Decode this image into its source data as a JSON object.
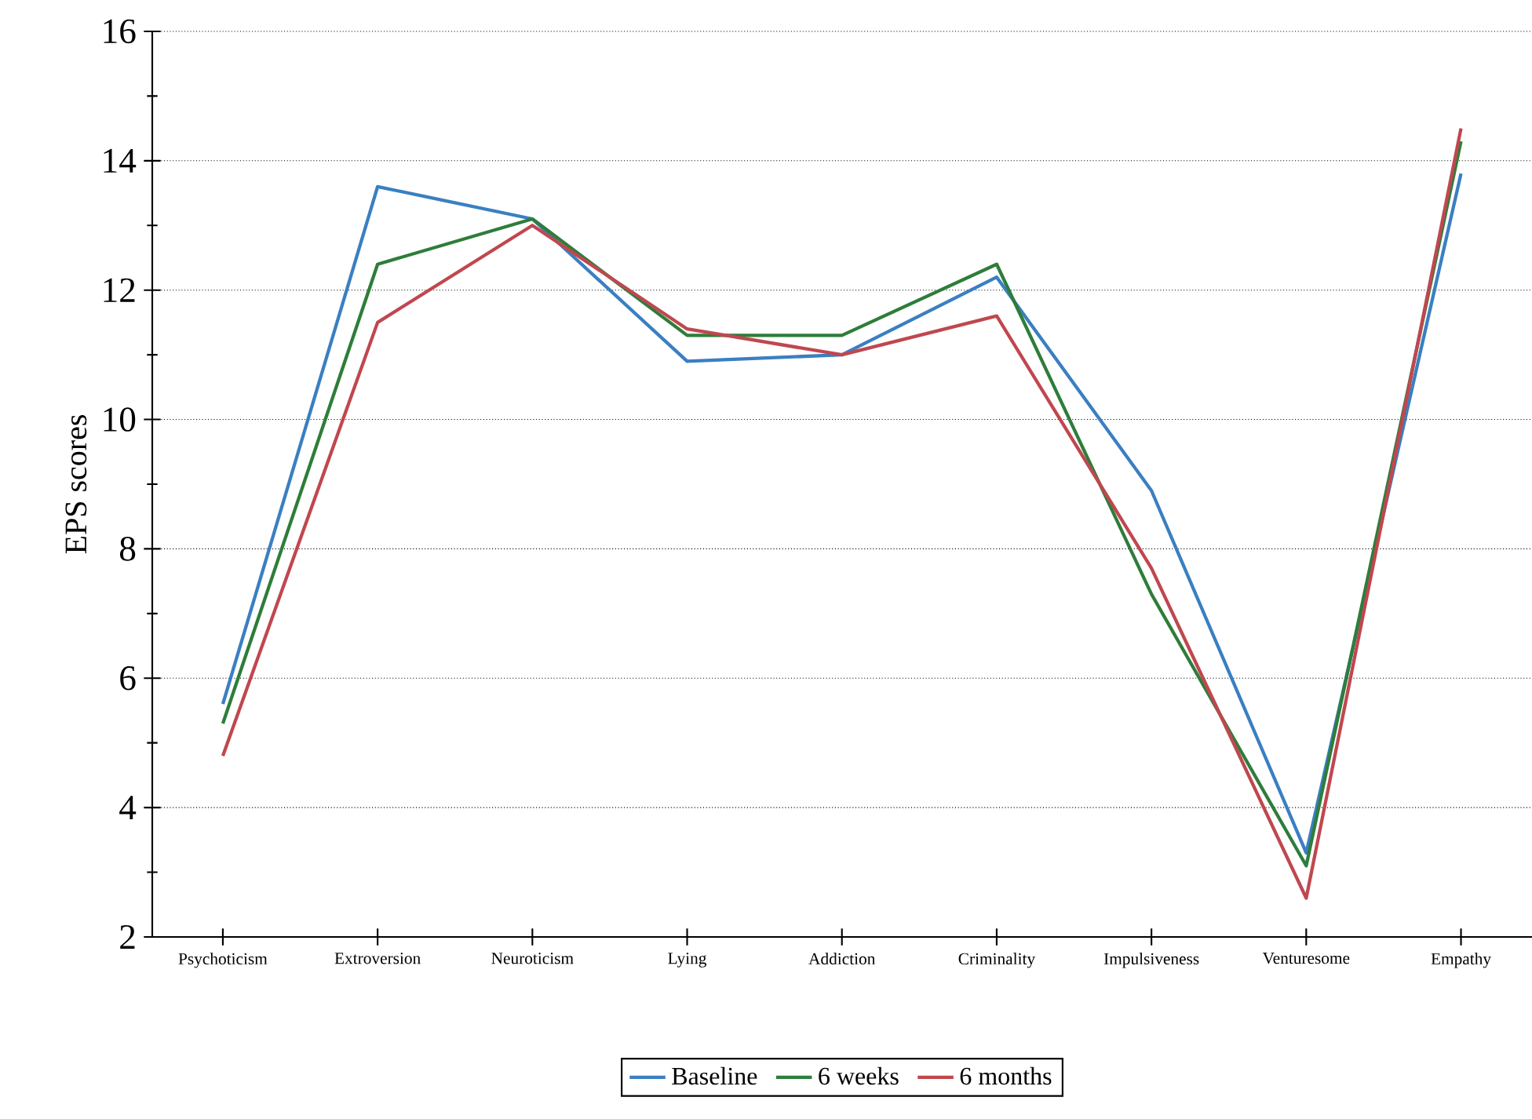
{
  "chart_data": {
    "type": "line",
    "ylabel": "EPS scores",
    "categories": [
      "Psychoticism",
      "Extroversion",
      "Neuroticism",
      "Lying",
      "Addiction",
      "Criminality",
      "Impulsiveness",
      "Venturesome",
      "Empathy"
    ],
    "series": [
      {
        "name": "Baseline",
        "color": "#3a7fc1",
        "values": [
          5.6,
          13.6,
          13.1,
          10.9,
          11.0,
          12.2,
          8.9,
          3.3,
          13.8
        ]
      },
      {
        "name": "6 weeks",
        "color": "#2e7d3a",
        "values": [
          5.3,
          12.4,
          13.1,
          11.3,
          11.3,
          12.4,
          7.3,
          3.1,
          14.3
        ]
      },
      {
        "name": "6 months",
        "color": "#c0474f",
        "values": [
          4.8,
          11.5,
          13.0,
          11.4,
          11.0,
          11.6,
          7.7,
          2.6,
          14.5
        ]
      }
    ],
    "ylim": [
      2,
      16
    ],
    "yticks": [
      2,
      4,
      6,
      8,
      10,
      12,
      14,
      16
    ],
    "grid": "y",
    "legend": "bottom",
    "marker": "none",
    "line_style": "solid"
  }
}
